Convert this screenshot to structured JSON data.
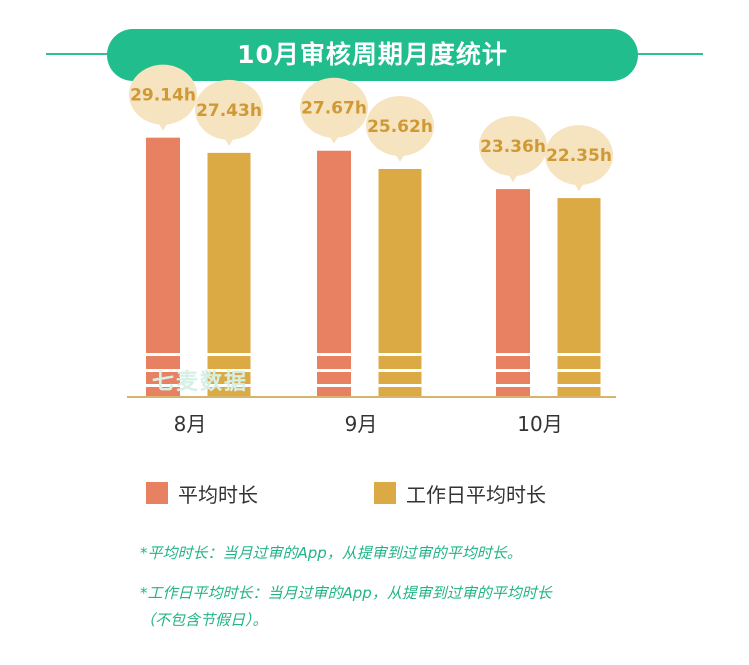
{
  "title": "10月审核周期月度统计",
  "watermark": "七麦数据",
  "chart_data": {
    "type": "bar",
    "categories": [
      "8月",
      "9月",
      "10月"
    ],
    "series": [
      {
        "name": "平均时长",
        "values": [
          29.14,
          27.67,
          23.36
        ],
        "labels": [
          "29.14h",
          "27.67h",
          "23.36h"
        ],
        "color": "#e88062"
      },
      {
        "name": "工作日平均时长",
        "values": [
          27.43,
          25.62,
          22.35
        ],
        "labels": [
          "27.43h",
          "25.62h",
          "22.35h"
        ],
        "color": "#dcaa45"
      }
    ],
    "unit": "h",
    "ylim": [
      0,
      30
    ],
    "grid": false,
    "legend_position": "bottom",
    "label_bubble_color": "#f6e3bf",
    "label_text_color": "#cf9a36",
    "axis_color": "#d8b56a"
  },
  "notes": [
    "*平均时长：当月过审的App，从提审到过审的平均时长。",
    "*工作日平均时长：当月过审的App，从提审到过审的平均时长",
    "（不包含节假日）。"
  ]
}
